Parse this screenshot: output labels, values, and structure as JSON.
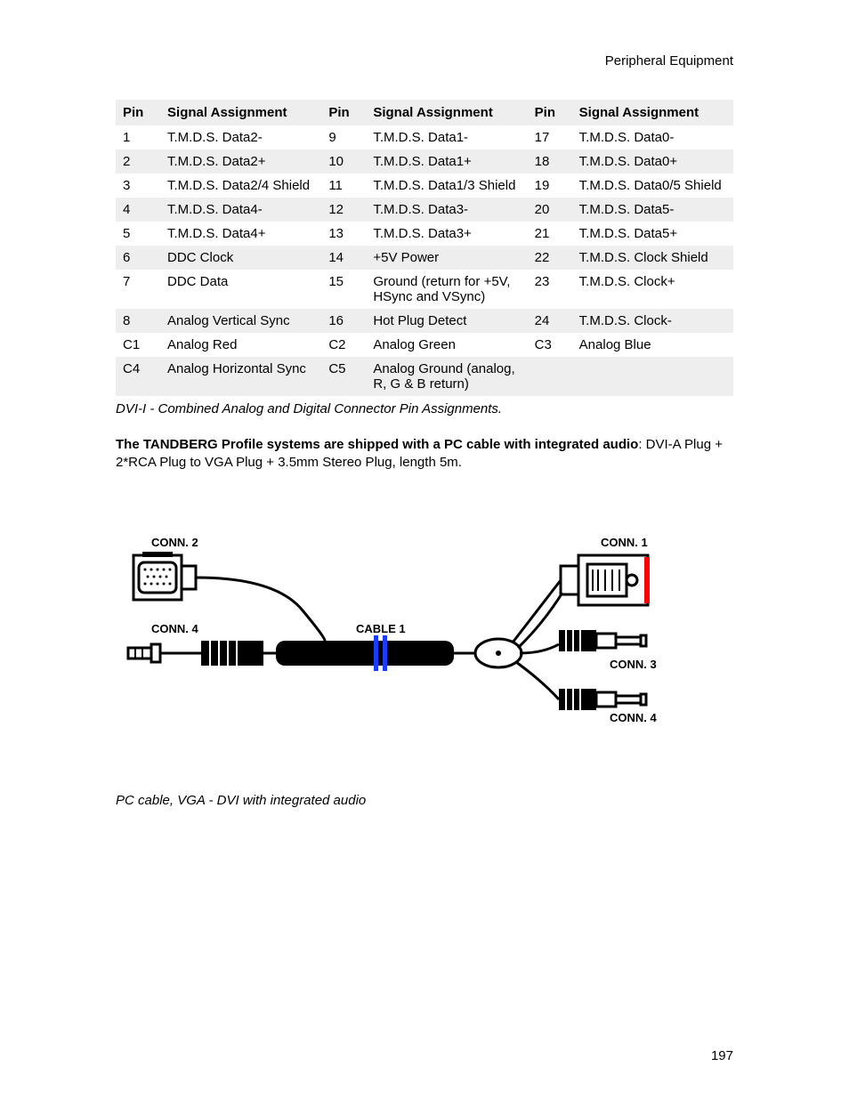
{
  "header": {
    "section_title": "Peripheral Equipment"
  },
  "table": {
    "headers": {
      "pin": "Pin",
      "signal": "Signal Assignment"
    },
    "rows": [
      {
        "p1": "1",
        "s1": "T.M.D.S. Data2-",
        "p2": "9",
        "s2": "T.M.D.S. Data1-",
        "p3": "17",
        "s3": "T.M.D.S. Data0-"
      },
      {
        "p1": "2",
        "s1": "T.M.D.S. Data2+",
        "p2": "10",
        "s2": "T.M.D.S. Data1+",
        "p3": "18",
        "s3": "T.M.D.S. Data0+"
      },
      {
        "p1": "3",
        "s1": "T.M.D.S. Data2/4 Shield",
        "p2": "11",
        "s2": "T.M.D.S. Data1/3 Shield",
        "p3": "19",
        "s3": "T.M.D.S. Data0/5 Shield"
      },
      {
        "p1": "4",
        "s1": "T.M.D.S. Data4-",
        "p2": "12",
        "s2": "T.M.D.S. Data3-",
        "p3": "20",
        "s3": "T.M.D.S. Data5-"
      },
      {
        "p1": "5",
        "s1": "T.M.D.S. Data4+",
        "p2": "13",
        "s2": "T.M.D.S. Data3+",
        "p3": "21",
        "s3": "T.M.D.S. Data5+"
      },
      {
        "p1": "6",
        "s1": "DDC Clock",
        "p2": "14",
        "s2": "+5V Power",
        "p3": "22",
        "s3": "T.M.D.S. Clock Shield"
      },
      {
        "p1": "7",
        "s1": "DDC Data",
        "p2": "15",
        "s2": "Ground (return for +5V, HSync and VSync)",
        "p3": "23",
        "s3": "T.M.D.S. Clock+"
      },
      {
        "p1": "8",
        "s1": "Analog Vertical Sync",
        "p2": "16",
        "s2": "Hot Plug Detect",
        "p3": "24",
        "s3": "T.M.D.S. Clock-"
      },
      {
        "p1": "C1",
        "s1": "Analog Red",
        "p2": "C2",
        "s2": "Analog Green",
        "p3": "C3",
        "s3": "Analog Blue"
      },
      {
        "p1": "C4",
        "s1": "Analog Horizontal Sync",
        "p2": "C5",
        "s2": "Analog Ground (analog, R, G & B return)",
        "p3": "",
        "s3": ""
      }
    ],
    "caption": "DVI-I - Combined Analog and Digital Connector Pin Assignments."
  },
  "paragraph": {
    "bold": "The TANDBERG Profile systems are shipped with a PC cable with integrated audio",
    "tail": ": DVI-A Plug + 2*RCA Plug to VGA Plug + 3.5mm Stereo Plug, length 5m."
  },
  "diagram": {
    "labels": {
      "conn1": "CONN. 1",
      "conn2": "CONN. 2",
      "conn3": "CONN. 3",
      "conn4_left": "CONN. 4",
      "conn4_right": "CONN. 4",
      "cable1": "CABLE 1"
    },
    "colors": {
      "stroke": "#000000",
      "fill_black": "#000000",
      "fill_white": "#ffffff",
      "accent_red": "#ff0000",
      "accent_blue": "#1a3cff"
    },
    "line_widths": {
      "outline": 3,
      "wire": 3,
      "accent": 4
    }
  },
  "figure_caption": "PC cable, VGA - DVI with integrated audio",
  "page_number": "197"
}
